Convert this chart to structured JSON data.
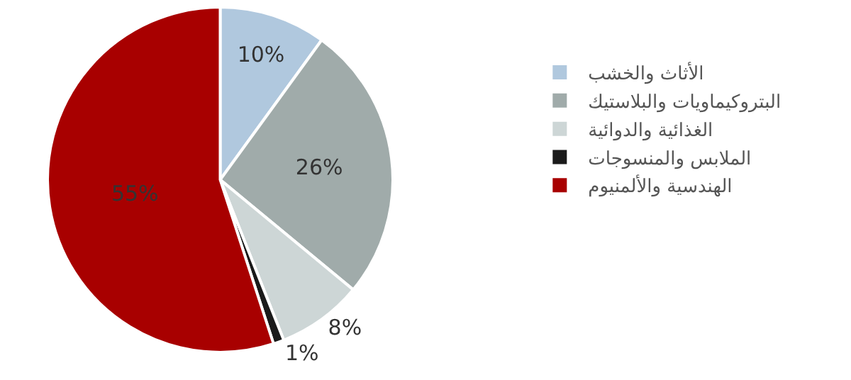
{
  "chart_data": {
    "type": "pie",
    "categories": [
      "الأثاث والخشب",
      "البتروكيماويات والبلاستيك",
      "الغذائية والدوائية",
      "الملابس والمنسوجات",
      "الهندسية والألمنيوم"
    ],
    "values": [
      10,
      26,
      8,
      1,
      55
    ],
    "colors": [
      "#b0c8de",
      "#a0abaa",
      "#cdd6d6",
      "#1a1a1a",
      "#a80000"
    ],
    "value_labels": [
      "10%",
      "26%",
      "8%",
      "1%",
      "55%"
    ],
    "legend": "right"
  }
}
